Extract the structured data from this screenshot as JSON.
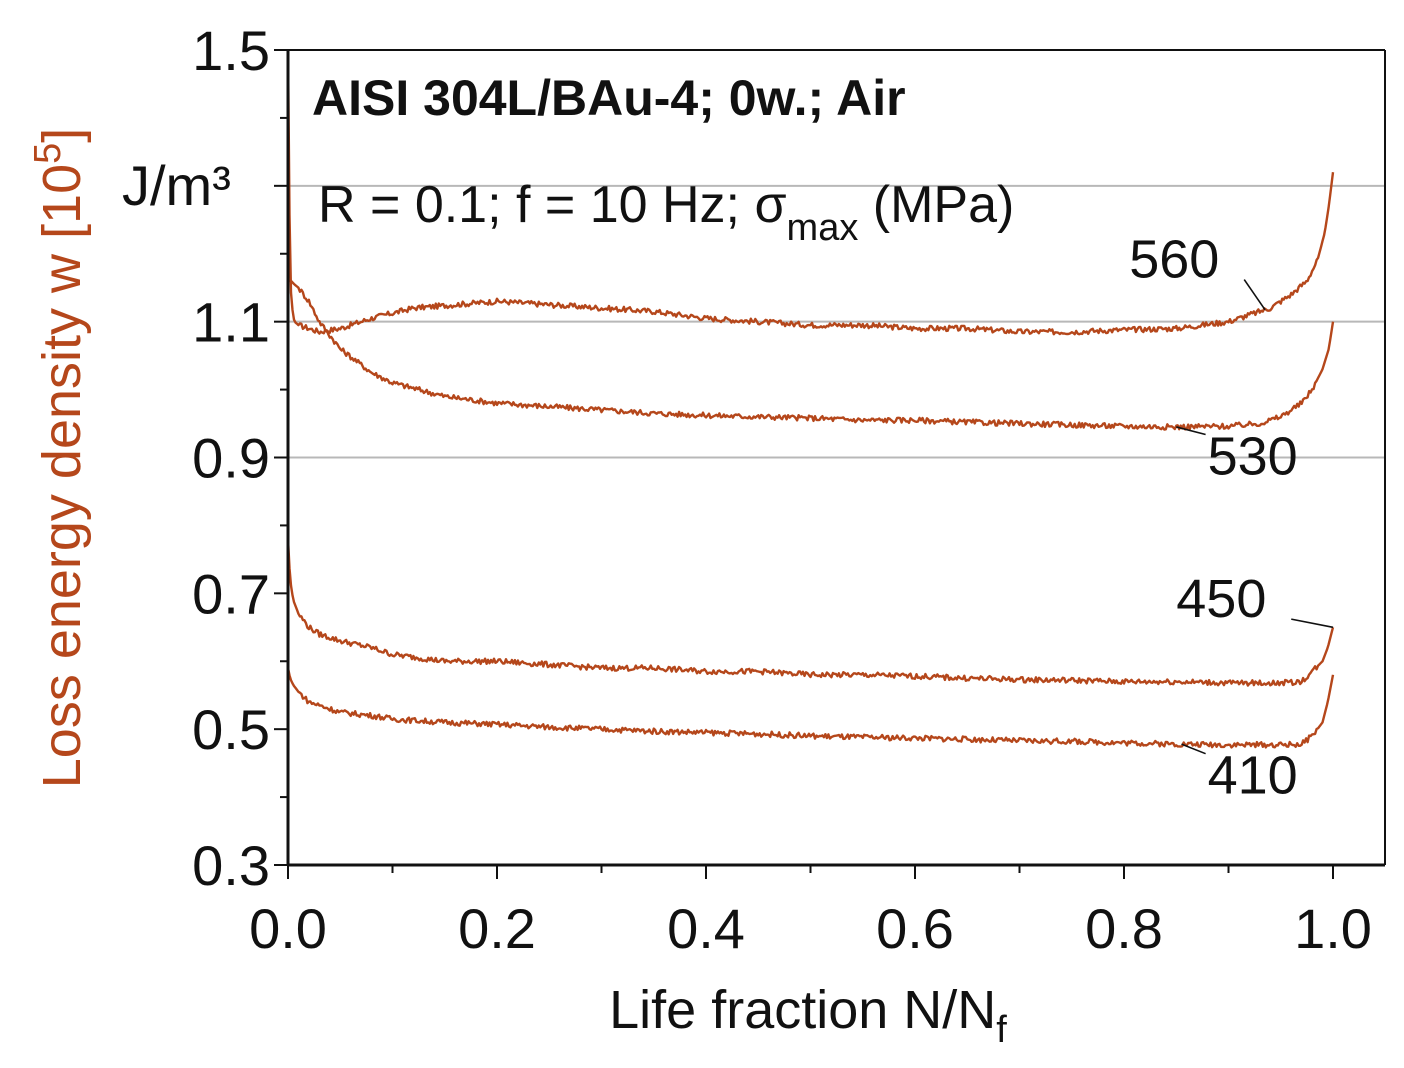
{
  "chart_data": {
    "type": "line",
    "title": "AISI 304L/BAu-4; 0w.; Air",
    "subtitle": {
      "prefix": "R = 0.1; f = 10 Hz; ",
      "sigma": "σ",
      "sub": "max",
      "suffix": " (MPa)"
    },
    "xlabel": {
      "main": "Life fraction N/N",
      "sub": "f"
    },
    "ylabel": {
      "main": "Loss energy density w [10",
      "sup": "5",
      "end": "]"
    },
    "y_unit": "J/m³",
    "xlim": [
      0.0,
      1.0
    ],
    "ylim": [
      0.3,
      1.5
    ],
    "x_ticks": [
      "0.0",
      "0.2",
      "0.4",
      "0.6",
      "0.8",
      "1.0"
    ],
    "x_tick_values": [
      0.0,
      0.2,
      0.4,
      0.6,
      0.8,
      1.0
    ],
    "y_ticks": [
      "0.3",
      "0.5",
      "0.7",
      "0.9",
      "1.1",
      "1.5"
    ],
    "y_tick_values": [
      0.3,
      0.5,
      0.7,
      0.9,
      1.1,
      1.5
    ],
    "gridlines_y": [
      0.9,
      1.1,
      1.3
    ],
    "colors": {
      "series": "#b5471b",
      "axis": "#111111",
      "grid": "#b8b8b8",
      "ylabel": "#b5471b"
    },
    "series": [
      {
        "name": "560",
        "x": [
          0.0,
          0.002,
          0.004,
          0.006,
          0.01,
          0.02,
          0.03,
          0.05,
          0.08,
          0.12,
          0.16,
          0.2,
          0.25,
          0.3,
          0.35,
          0.4,
          0.45,
          0.5,
          0.55,
          0.6,
          0.65,
          0.7,
          0.75,
          0.8,
          0.85,
          0.9,
          0.92,
          0.94,
          0.96,
          0.975,
          0.985,
          0.992,
          0.996,
          1.0
        ],
        "values": [
          1.5,
          1.16,
          1.12,
          1.1,
          1.095,
          1.09,
          1.085,
          1.09,
          1.105,
          1.12,
          1.125,
          1.13,
          1.125,
          1.12,
          1.115,
          1.105,
          1.1,
          1.095,
          1.095,
          1.09,
          1.09,
          1.085,
          1.085,
          1.088,
          1.09,
          1.1,
          1.11,
          1.12,
          1.14,
          1.16,
          1.19,
          1.23,
          1.27,
          1.32
        ]
      },
      {
        "name": "530",
        "x": [
          0.0,
          0.003,
          0.006,
          0.01,
          0.02,
          0.03,
          0.05,
          0.08,
          0.1,
          0.15,
          0.2,
          0.25,
          0.3,
          0.35,
          0.4,
          0.45,
          0.5,
          0.55,
          0.6,
          0.65,
          0.7,
          0.75,
          0.8,
          0.85,
          0.9,
          0.93,
          0.95,
          0.97,
          0.98,
          0.99,
          0.996,
          1.0
        ],
        "values": [
          1.16,
          1.16,
          1.155,
          1.15,
          1.13,
          1.1,
          1.06,
          1.025,
          1.01,
          0.99,
          0.98,
          0.975,
          0.97,
          0.965,
          0.962,
          0.96,
          0.958,
          0.955,
          0.955,
          0.952,
          0.95,
          0.948,
          0.946,
          0.945,
          0.946,
          0.95,
          0.96,
          0.98,
          1.0,
          1.03,
          1.06,
          1.1
        ]
      },
      {
        "name": "450",
        "x": [
          0.0,
          0.002,
          0.005,
          0.01,
          0.02,
          0.03,
          0.05,
          0.08,
          0.1,
          0.15,
          0.2,
          0.25,
          0.3,
          0.35,
          0.4,
          0.45,
          0.5,
          0.55,
          0.6,
          0.65,
          0.7,
          0.75,
          0.8,
          0.85,
          0.9,
          0.95,
          0.97,
          0.98,
          0.99,
          0.995,
          1.0
        ],
        "values": [
          0.78,
          0.72,
          0.69,
          0.67,
          0.65,
          0.64,
          0.63,
          0.62,
          0.61,
          0.6,
          0.6,
          0.595,
          0.59,
          0.59,
          0.585,
          0.585,
          0.58,
          0.58,
          0.578,
          0.575,
          0.573,
          0.572,
          0.57,
          0.57,
          0.568,
          0.568,
          0.57,
          0.585,
          0.6,
          0.62,
          0.65
        ]
      },
      {
        "name": "410",
        "x": [
          0.0,
          0.002,
          0.005,
          0.01,
          0.02,
          0.03,
          0.05,
          0.08,
          0.1,
          0.15,
          0.2,
          0.25,
          0.3,
          0.35,
          0.4,
          0.45,
          0.5,
          0.55,
          0.6,
          0.65,
          0.7,
          0.75,
          0.8,
          0.85,
          0.9,
          0.95,
          0.97,
          0.98,
          0.99,
          0.995,
          1.0
        ],
        "values": [
          0.59,
          0.575,
          0.565,
          0.555,
          0.54,
          0.535,
          0.525,
          0.52,
          0.515,
          0.51,
          0.507,
          0.503,
          0.5,
          0.497,
          0.495,
          0.493,
          0.49,
          0.488,
          0.487,
          0.485,
          0.483,
          0.482,
          0.48,
          0.478,
          0.477,
          0.477,
          0.478,
          0.49,
          0.51,
          0.54,
          0.58
        ]
      }
    ],
    "annotations": [
      {
        "text": "560",
        "series": "560",
        "at_x": 0.935,
        "text_x": 0.805,
        "text_y": 1.165
      },
      {
        "text": "530",
        "series": "530",
        "at_x": 0.85,
        "text_x": 0.88,
        "text_y": 0.875
      },
      {
        "text": "450",
        "series": "450",
        "at_x": 1.0,
        "text_x": 0.85,
        "text_y": 0.665
      },
      {
        "text": "410",
        "series": "410",
        "at_x": 0.855,
        "text_x": 0.88,
        "text_y": 0.405
      }
    ]
  }
}
